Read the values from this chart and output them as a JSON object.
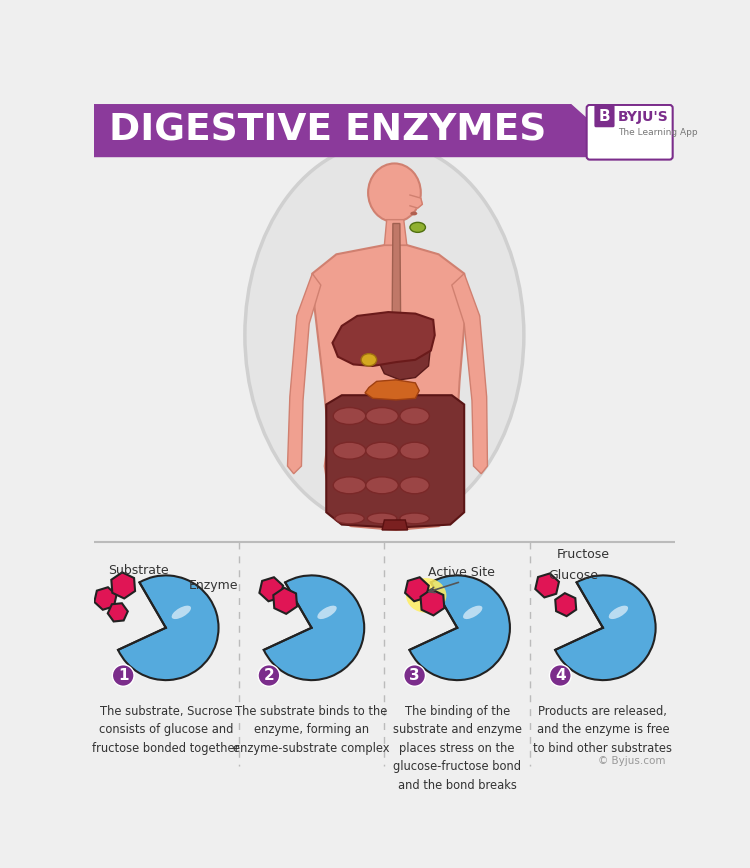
{
  "title": "DIGESTIVE ENZYMES",
  "title_bg_color": "#8B3A9B",
  "title_text_color": "#FFFFFF",
  "bg_color": "#EFEFEF",
  "byju_color": "#7B2D8B",
  "body_skin_color": "#F0A090",
  "body_outline_color": "#D08070",
  "liver_color": "#8B3535",
  "gallbladder_color": "#D4A820",
  "pancreas_color": "#D06520",
  "salivary_color": "#90B030",
  "intestine_dark": "#7A3535",
  "intestine_mid": "#9B4545",
  "enzyme_blue": "#55AADD",
  "substrate_pink": "#E01555",
  "number_bg": "#7B2D8B",
  "text_color": "#333333",
  "separator_color": "#BBBBBB",
  "oval_color": "#E5E5E5",
  "oval_stroke": "#D0D0D0",
  "step1_label_substrate": "Substrate",
  "step1_label_enzyme": "Enzyme",
  "step3_label_active": "Active Site",
  "step4_label_glucose": "Glucose",
  "step4_label_fructose": "Fructose",
  "step1_text": "The substrate, Sucrose\nconsists of glucose and\nfructose bonded together",
  "step2_text": "The substrate binds to the\nenzyme, forming an\nenzyme-substrate complex",
  "step3_text": "The binding of the\nsubstrate and enzyme\nplaces stress on the\nglucose-fructose bond\nand the bond breaks",
  "step4_text": "Products are released,\nand the enzyme is free\nto bind other substrates",
  "copyright": "© Byjus.com"
}
